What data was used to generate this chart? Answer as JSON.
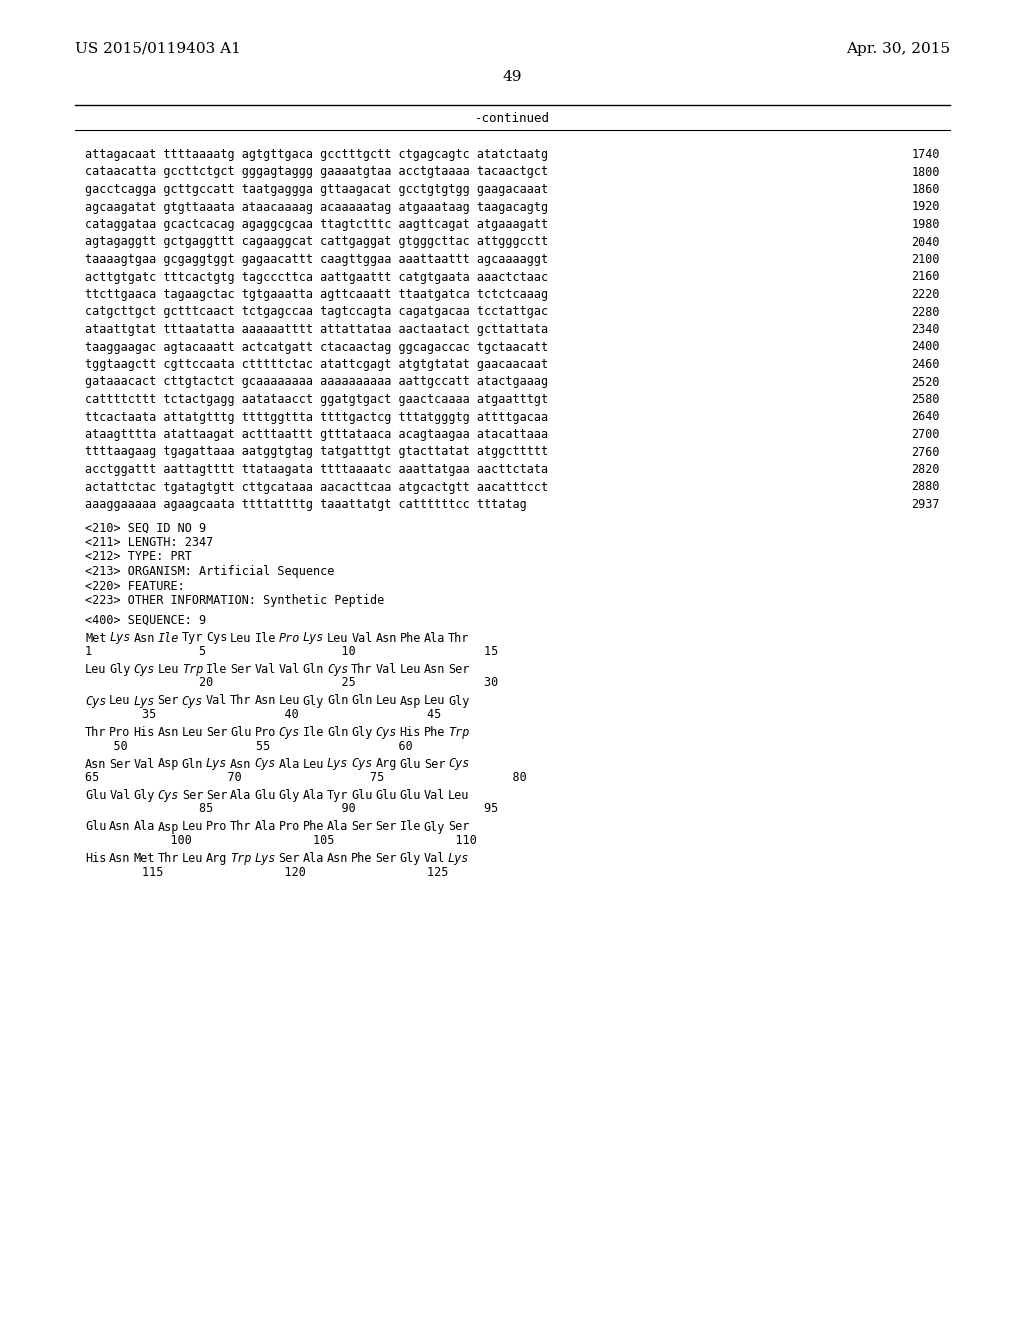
{
  "header_left": "US 2015/0119403 A1",
  "header_right": "Apr. 30, 2015",
  "page_number": "49",
  "continued_text": "-continued",
  "background_color": "#ffffff",
  "text_color": "#000000",
  "sequence_lines": [
    [
      "attagacaat ttttaaaatg agtgttgaca gcctttgctt ctgagcagtc atatctaatg",
      "1740"
    ],
    [
      "cataacatta gccttctgct gggagtaggg gaaaatgtaa acctgtaaaa tacaactgct",
      "1800"
    ],
    [
      "gacctcagga gcttgccatt taatgaggga gttaagacat gcctgtgtgg gaagacaaat",
      "1860"
    ],
    [
      "agcaagatat gtgttaaata ataacaaaag acaaaaatag atgaaataag taagacagtg",
      "1920"
    ],
    [
      "cataggataa gcactcacag agaggcgcaa ttagtctttc aagttcagat atgaaagatt",
      "1980"
    ],
    [
      "agtagaggtt gctgaggttt cagaaggcat cattgaggat gtgggcttac attgggcctt",
      "2040"
    ],
    [
      "taaaagtgaa gcgaggtggt gagaacattt caagttggaa aaattaattt agcaaaaggt",
      "2100"
    ],
    [
      "acttgtgatc tttcactgtg tagcccttca aattgaattt catgtgaata aaactctaac",
      "2160"
    ],
    [
      "ttcttgaaca tagaagctac tgtgaaatta agttcaaatt ttaatgatca tctctcaaag",
      "2220"
    ],
    [
      "catgcttgct gctttcaact tctgagccaa tagtccagta cagatgacaa tcctattgac",
      "2280"
    ],
    [
      "ataattgtat tttaatatta aaaaaatttt attattataa aactaatact gcttattata",
      "2340"
    ],
    [
      "taaggaagac agtacaaatt actcatgatt ctacaactag ggcagaccac tgctaacatt",
      "2400"
    ],
    [
      "tggtaagctt cgttccaata ctttttctac atattcgagt atgtgtatat gaacaacaat",
      "2460"
    ],
    [
      "gataaacact cttgtactct gcaaaaaaaa aaaaaaaaaa aattgccatt atactgaaag",
      "2520"
    ],
    [
      "cattttcttt tctactgagg aatataacct ggatgtgact gaactcaaaa atgaatttgt",
      "2580"
    ],
    [
      "ttcactaata attatgtttg ttttggttta ttttgactcg tttatgggtg attttgacaa",
      "2640"
    ],
    [
      "ataagtttta atattaagat actttaattt gtttataaca acagtaagaa atacattaaa",
      "2700"
    ],
    [
      "ttttaagaag tgagattaaa aatggtgtag tatgatttgt gtacttatat atggcttttt",
      "2760"
    ],
    [
      "acctggattt aattagtttt ttataagata ttttaaaatc aaattatgaa aacttctata",
      "2820"
    ],
    [
      "actattctac tgatagtgtt cttgcataaa aacacttcaa atgcactgtt aacatttcct",
      "2880"
    ],
    [
      "aaaggaaaaa agaagcaata ttttattttg taaattatgt cattttttcc tttatag",
      "2937"
    ]
  ],
  "metadata_lines": [
    "<210> SEQ ID NO 9",
    "<211> LENGTH: 2347",
    "<212> TYPE: PRT",
    "<213> ORGANISM: Artificial Sequence",
    "<220> FEATURE:",
    "<223> OTHER INFORMATION: Synthetic Peptide"
  ],
  "sequence_label": "<400> SEQUENCE: 9",
  "protein_lines": [
    {
      "amino": "Met Lys Asn Ile Tyr Cys Leu Ile Pro Lys Leu Val Asn Phe Ala Thr",
      "numbers": "1               5                   10                  15",
      "italic_indices": [
        1,
        3,
        8,
        9
      ]
    },
    {
      "amino": "Leu Gly Cys Leu Trp Ile Ser Val Val Gln Cys Thr Val Leu Asn Ser",
      "numbers": "                20                  25                  30",
      "italic_indices": [
        2,
        4,
        10
      ]
    },
    {
      "amino": "Cys Leu Lys Ser Cys Val Thr Asn Leu Gly Gln Gln Leu Asp Leu Gly",
      "numbers": "        35                  40                  45",
      "italic_indices": [
        0,
        2,
        4
      ]
    },
    {
      "amino": "Thr Pro His Asn Leu Ser Glu Pro Cys Ile Gln Gly Cys His Phe Trp",
      "numbers": "    50                  55                  60",
      "italic_indices": [
        8,
        12,
        15
      ]
    },
    {
      "amino": "Asn Ser Val Asp Gln Lys Asn Cys Ala Leu Lys Cys Arg Glu Ser Cys",
      "numbers": "65                  70                  75                  80",
      "italic_indices": [
        5,
        7,
        10,
        11,
        15
      ]
    },
    {
      "amino": "Glu Val Gly Cys Ser Ser Ala Glu Gly Ala Tyr Glu Glu Glu Val Leu",
      "numbers": "                85                  90                  95",
      "italic_indices": [
        3
      ]
    },
    {
      "amino": "Glu Asn Ala Asp Leu Pro Thr Ala Pro Phe Ala Ser Ser Ile Gly Ser",
      "numbers": "            100                 105                 110",
      "italic_indices": []
    },
    {
      "amino": "His Asn Met Thr Leu Arg Trp Lys Ser Ala Asn Phe Ser Gly Val Lys",
      "numbers": "        115                 120                 125",
      "italic_indices": [
        6,
        7,
        15
      ]
    }
  ]
}
